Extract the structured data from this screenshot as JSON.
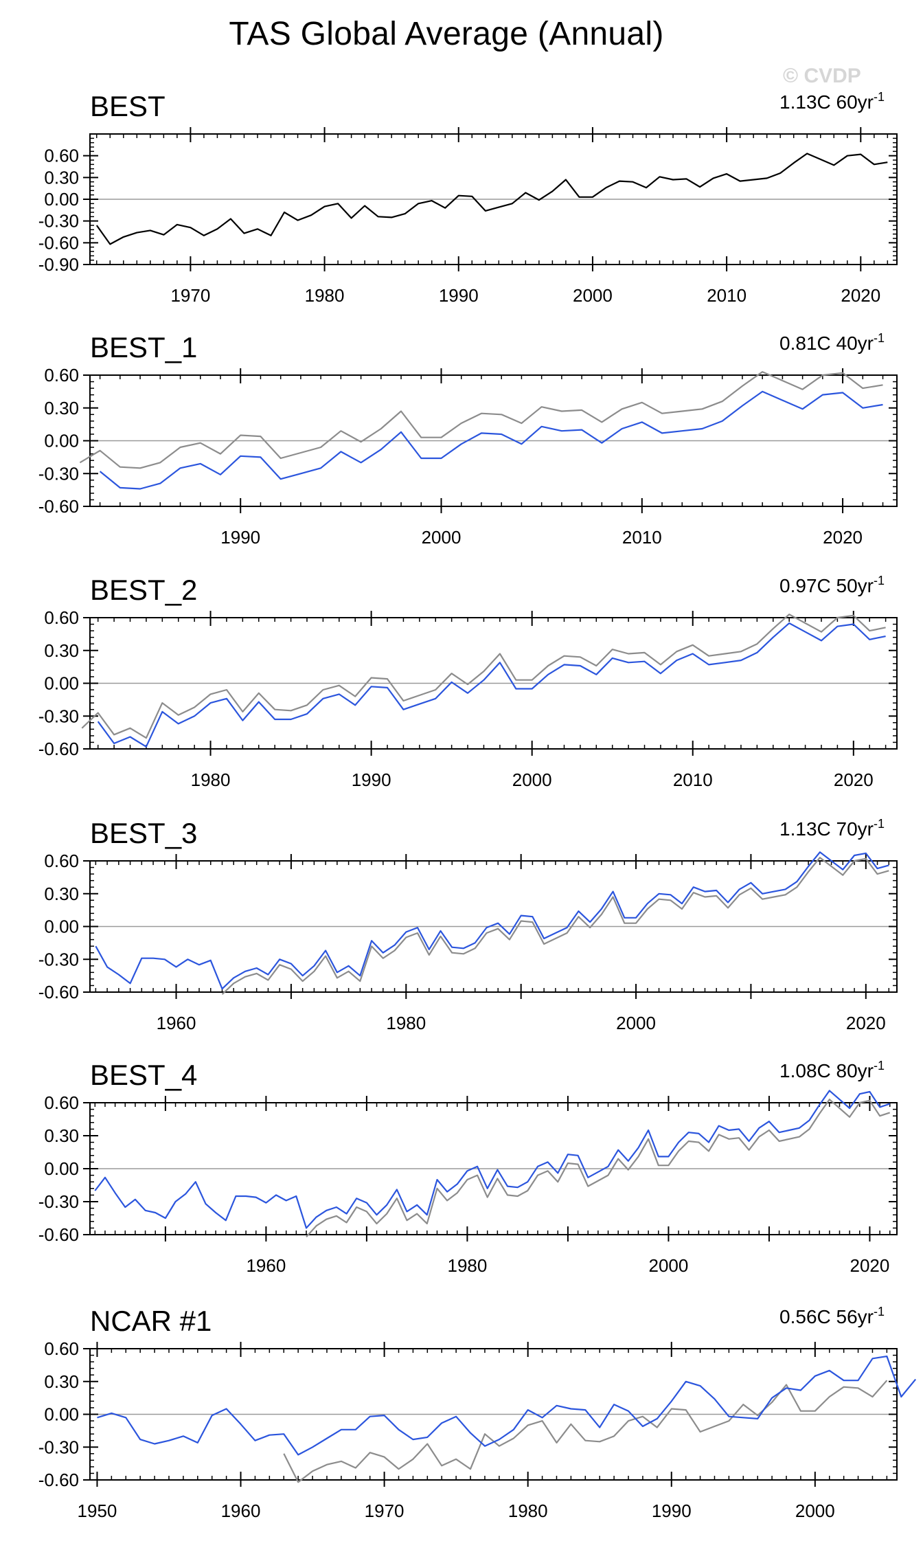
{
  "title": "TAS Global Average (Annual)",
  "watermark": "© CVDP",
  "colors": {
    "observed": "#000000",
    "reference": "#8c8c8c",
    "series": "#2b55dd",
    "zero": "#9a9a9a"
  },
  "chart_data": [
    {
      "type": "line",
      "name": "BEST",
      "trend": "1.13C 60yr",
      "trend_exp": "-1",
      "xlim": [
        1962.5,
        2022.7
      ],
      "ylim": [
        -0.9,
        0.9
      ],
      "yticks": [
        0.6,
        0.3,
        0.0,
        -0.3,
        -0.6,
        -0.9
      ],
      "ytick_labels": [
        "0.60",
        "0.30",
        "0.00",
        "-0.30",
        "-0.60",
        "-0.90"
      ],
      "xticks": [
        1970,
        1980,
        1990,
        2000,
        2010,
        2020
      ],
      "x_start": 1963,
      "series": [
        {
          "name": "BEST",
          "role": "observed",
          "start": 1963,
          "values": [
            -0.36,
            -0.62,
            -0.52,
            -0.46,
            -0.43,
            -0.49,
            -0.35,
            -0.39,
            -0.5,
            -0.41,
            -0.27,
            -0.47,
            -0.41,
            -0.5,
            -0.18,
            -0.29,
            -0.22,
            -0.1,
            -0.06,
            -0.26,
            -0.09,
            -0.24,
            -0.25,
            -0.2,
            -0.06,
            -0.02,
            -0.12,
            0.05,
            0.04,
            -0.16,
            -0.11,
            -0.06,
            0.09,
            -0.01,
            0.11,
            0.27,
            0.03,
            0.03,
            0.16,
            0.25,
            0.24,
            0.16,
            0.31,
            0.27,
            0.28,
            0.17,
            0.29,
            0.35,
            0.25,
            0.27,
            0.29,
            0.36,
            0.5,
            0.63,
            0.55,
            0.47,
            0.6,
            0.62,
            0.48,
            0.51
          ]
        }
      ]
    },
    {
      "type": "line",
      "name": "BEST_1",
      "trend": "0.81C 40yr",
      "trend_exp": "-1",
      "xlim": [
        1982.5,
        2022.7
      ],
      "ylim": [
        -0.6,
        0.6
      ],
      "yticks": [
        0.6,
        0.3,
        0.0,
        -0.3,
        -0.6
      ],
      "ytick_labels": [
        "0.60",
        "0.30",
        "0.00",
        "-0.30",
        "-0.60"
      ],
      "xticks": [
        1990,
        2000,
        2010,
        2020
      ],
      "series": [
        {
          "name": "BEST",
          "role": "reference",
          "start": 1982,
          "values": [
            -0.2,
            -0.09,
            -0.24,
            -0.25,
            -0.2,
            -0.06,
            -0.02,
            -0.12,
            0.05,
            0.04,
            -0.16,
            -0.11,
            -0.06,
            0.09,
            -0.01,
            0.11,
            0.27,
            0.03,
            0.03,
            0.16,
            0.25,
            0.24,
            0.16,
            0.31,
            0.27,
            0.28,
            0.17,
            0.29,
            0.35,
            0.25,
            0.27,
            0.29,
            0.36,
            0.5,
            0.63,
            0.55,
            0.47,
            0.6,
            0.62,
            0.48,
            0.51
          ]
        },
        {
          "name": "BEST_1",
          "role": "series",
          "start": 1983,
          "values": [
            -0.28,
            -0.43,
            -0.44,
            -0.39,
            -0.25,
            -0.21,
            -0.31,
            -0.14,
            -0.15,
            -0.35,
            -0.3,
            -0.25,
            -0.1,
            -0.2,
            -0.08,
            0.08,
            -0.16,
            -0.16,
            -0.03,
            0.07,
            0.06,
            -0.03,
            0.13,
            0.09,
            0.1,
            -0.02,
            0.11,
            0.17,
            0.07,
            0.09,
            0.11,
            0.18,
            0.32,
            0.45,
            0.37,
            0.29,
            0.42,
            0.44,
            0.3,
            0.33
          ]
        }
      ]
    },
    {
      "type": "line",
      "name": "BEST_2",
      "trend": "0.97C 50yr",
      "trend_exp": "-1",
      "xlim": [
        1972.5,
        2022.7
      ],
      "ylim": [
        -0.6,
        0.6
      ],
      "yticks": [
        0.6,
        0.3,
        0.0,
        -0.3,
        -0.6
      ],
      "ytick_labels": [
        "0.60",
        "0.30",
        "0.00",
        "-0.30",
        "-0.60"
      ],
      "xticks": [
        1980,
        1990,
        2000,
        2010,
        2020
      ],
      "series": [
        {
          "name": "BEST",
          "role": "reference",
          "start": 1972,
          "values": [
            -0.41,
            -0.27,
            -0.47,
            -0.41,
            -0.5,
            -0.18,
            -0.29,
            -0.22,
            -0.1,
            -0.06,
            -0.26,
            -0.09,
            -0.24,
            -0.25,
            -0.2,
            -0.06,
            -0.02,
            -0.12,
            0.05,
            0.04,
            -0.16,
            -0.11,
            -0.06,
            0.09,
            -0.01,
            0.11,
            0.27,
            0.03,
            0.03,
            0.16,
            0.25,
            0.24,
            0.16,
            0.31,
            0.27,
            0.28,
            0.17,
            0.29,
            0.35,
            0.25,
            0.27,
            0.29,
            0.36,
            0.5,
            0.63,
            0.55,
            0.47,
            0.6,
            0.62,
            0.48,
            0.51
          ]
        },
        {
          "name": "BEST_2",
          "role": "series",
          "start": 1973,
          "values": [
            -0.35,
            -0.55,
            -0.49,
            -0.58,
            -0.26,
            -0.37,
            -0.3,
            -0.18,
            -0.14,
            -0.34,
            -0.17,
            -0.33,
            -0.33,
            -0.28,
            -0.14,
            -0.1,
            -0.2,
            -0.03,
            -0.04,
            -0.24,
            -0.19,
            -0.14,
            0.01,
            -0.09,
            0.03,
            0.19,
            -0.05,
            -0.05,
            0.08,
            0.17,
            0.16,
            0.08,
            0.23,
            0.19,
            0.2,
            0.09,
            0.21,
            0.27,
            0.17,
            0.19,
            0.21,
            0.28,
            0.42,
            0.55,
            0.47,
            0.39,
            0.52,
            0.54,
            0.4,
            0.43
          ]
        }
      ]
    },
    {
      "type": "line",
      "name": "BEST_3",
      "trend": "1.13C 70yr",
      "trend_exp": "-1",
      "xlim": [
        1952.5,
        2022.7
      ],
      "ylim": [
        -0.6,
        0.6
      ],
      "yticks": [
        0.6,
        0.3,
        0.0,
        -0.3,
        -0.6
      ],
      "ytick_labels": [
        "0.60",
        "0.30",
        "0.00",
        "-0.30",
        "-0.60"
      ],
      "xticks": [
        1960,
        1980,
        2000,
        2020
      ],
      "series": [
        {
          "name": "BEST",
          "role": "reference",
          "start": 1964,
          "values": [
            -0.62,
            -0.52,
            -0.46,
            -0.43,
            -0.49,
            -0.35,
            -0.39,
            -0.5,
            -0.41,
            -0.27,
            -0.47,
            -0.41,
            -0.5,
            -0.18,
            -0.29,
            -0.22,
            -0.1,
            -0.06,
            -0.26,
            -0.09,
            -0.24,
            -0.25,
            -0.2,
            -0.06,
            -0.02,
            -0.12,
            0.05,
            0.04,
            -0.16,
            -0.11,
            -0.06,
            0.09,
            -0.01,
            0.11,
            0.27,
            0.03,
            0.03,
            0.16,
            0.25,
            0.24,
            0.16,
            0.31,
            0.27,
            0.28,
            0.17,
            0.29,
            0.35,
            0.25,
            0.27,
            0.29,
            0.36,
            0.5,
            0.63,
            0.55,
            0.47,
            0.6,
            0.62,
            0.48,
            0.51
          ]
        },
        {
          "name": "BEST_3",
          "role": "series",
          "start": 1953,
          "values": [
            -0.18,
            -0.37,
            -0.44,
            -0.52,
            -0.29,
            -0.29,
            -0.3,
            -0.37,
            -0.3,
            -0.35,
            -0.31,
            -0.57,
            -0.47,
            -0.41,
            -0.38,
            -0.44,
            -0.3,
            -0.34,
            -0.45,
            -0.36,
            -0.22,
            -0.42,
            -0.36,
            -0.45,
            -0.13,
            -0.24,
            -0.17,
            -0.05,
            -0.01,
            -0.21,
            -0.04,
            -0.19,
            -0.2,
            -0.15,
            -0.01,
            0.03,
            -0.07,
            0.1,
            0.09,
            -0.11,
            -0.06,
            -0.01,
            0.14,
            0.04,
            0.16,
            0.32,
            0.08,
            0.08,
            0.21,
            0.3,
            0.29,
            0.21,
            0.36,
            0.32,
            0.33,
            0.22,
            0.34,
            0.4,
            0.3,
            0.32,
            0.34,
            0.41,
            0.55,
            0.68,
            0.6,
            0.52,
            0.65,
            0.67,
            0.53,
            0.56
          ]
        }
      ]
    },
    {
      "type": "line",
      "name": "BEST_4",
      "trend": "1.08C 80yr",
      "trend_exp": "-1",
      "xlim": [
        1942.5,
        2022.7
      ],
      "ylim": [
        -0.6,
        0.6
      ],
      "yticks": [
        0.6,
        0.3,
        0.0,
        -0.3,
        -0.6
      ],
      "ytick_labels": [
        "0.60",
        "0.30",
        "0.00",
        "-0.30",
        "-0.60"
      ],
      "xticks": [
        1960,
        1980,
        2000,
        2020
      ],
      "series": [
        {
          "name": "BEST",
          "role": "reference",
          "start": 1964,
          "values": [
            -0.62,
            -0.52,
            -0.46,
            -0.43,
            -0.49,
            -0.35,
            -0.39,
            -0.5,
            -0.41,
            -0.27,
            -0.47,
            -0.41,
            -0.5,
            -0.18,
            -0.29,
            -0.22,
            -0.1,
            -0.06,
            -0.26,
            -0.09,
            -0.24,
            -0.25,
            -0.2,
            -0.06,
            -0.02,
            -0.12,
            0.05,
            0.04,
            -0.16,
            -0.11,
            -0.06,
            0.09,
            -0.01,
            0.11,
            0.27,
            0.03,
            0.03,
            0.16,
            0.25,
            0.24,
            0.16,
            0.31,
            0.27,
            0.28,
            0.17,
            0.29,
            0.35,
            0.25,
            0.27,
            0.29,
            0.36,
            0.5,
            0.63,
            0.55,
            0.47,
            0.6,
            0.62,
            0.48,
            0.51
          ]
        },
        {
          "name": "BEST_4",
          "role": "series",
          "start": 1943,
          "values": [
            -0.2,
            -0.08,
            -0.22,
            -0.35,
            -0.28,
            -0.38,
            -0.4,
            -0.45,
            -0.3,
            -0.23,
            -0.12,
            -0.32,
            -0.4,
            -0.47,
            -0.25,
            -0.25,
            -0.26,
            -0.31,
            -0.24,
            -0.29,
            -0.25,
            -0.54,
            -0.44,
            -0.38,
            -0.35,
            -0.41,
            -0.27,
            -0.31,
            -0.42,
            -0.33,
            -0.19,
            -0.39,
            -0.33,
            -0.42,
            -0.1,
            -0.21,
            -0.14,
            -0.02,
            0.02,
            -0.18,
            -0.01,
            -0.16,
            -0.17,
            -0.12,
            0.02,
            0.06,
            -0.04,
            0.13,
            0.12,
            -0.08,
            -0.03,
            0.02,
            0.17,
            0.07,
            0.19,
            0.35,
            0.11,
            0.11,
            0.24,
            0.33,
            0.32,
            0.24,
            0.39,
            0.35,
            0.36,
            0.25,
            0.37,
            0.43,
            0.33,
            0.35,
            0.37,
            0.44,
            0.58,
            0.71,
            0.63,
            0.55,
            0.68,
            0.7,
            0.56,
            0.59
          ]
        }
      ]
    },
    {
      "type": "line",
      "name": "NCAR #1",
      "trend": "0.56C 56yr",
      "trend_exp": "-1",
      "xlim": [
        1949.5,
        2005.7
      ],
      "ylim": [
        -0.6,
        0.6
      ],
      "yticks": [
        0.6,
        0.3,
        0.0,
        -0.3,
        -0.6
      ],
      "ytick_labels": [
        "0.60",
        "0.30",
        "0.00",
        "-0.30",
        "-0.60"
      ],
      "xticks": [
        1950,
        1960,
        1970,
        1980,
        1990,
        2000
      ],
      "series": [
        {
          "name": "BEST",
          "role": "reference",
          "start": 1963,
          "values": [
            -0.36,
            -0.62,
            -0.52,
            -0.46,
            -0.43,
            -0.49,
            -0.35,
            -0.39,
            -0.5,
            -0.41,
            -0.27,
            -0.47,
            -0.41,
            -0.5,
            -0.18,
            -0.29,
            -0.22,
            -0.1,
            -0.06,
            -0.26,
            -0.09,
            -0.24,
            -0.25,
            -0.2,
            -0.06,
            -0.02,
            -0.12,
            0.05,
            0.04,
            -0.16,
            -0.11,
            -0.06,
            0.09,
            -0.01,
            0.11,
            0.27,
            0.03,
            0.03,
            0.16,
            0.25,
            0.24,
            0.16,
            0.31
          ]
        },
        {
          "name": "NCAR #1",
          "role": "series",
          "start": 1950,
          "values": [
            -0.03,
            0.01,
            -0.03,
            -0.23,
            -0.27,
            -0.24,
            -0.2,
            -0.26,
            -0.01,
            0.05,
            -0.09,
            -0.24,
            -0.19,
            -0.18,
            -0.37,
            -0.3,
            -0.22,
            -0.14,
            -0.14,
            -0.02,
            -0.01,
            -0.14,
            -0.23,
            -0.21,
            -0.08,
            -0.02,
            -0.17,
            -0.29,
            -0.23,
            -0.14,
            0.04,
            -0.03,
            0.08,
            0.05,
            0.04,
            -0.12,
            0.09,
            0.03,
            -0.11,
            -0.04,
            0.12,
            0.3,
            0.26,
            0.14,
            -0.02,
            -0.03,
            -0.04,
            0.15,
            0.24,
            0.22,
            0.35,
            0.4,
            0.31,
            0.31,
            0.51,
            0.53,
            0.16,
            0.32
          ]
        }
      ]
    }
  ]
}
